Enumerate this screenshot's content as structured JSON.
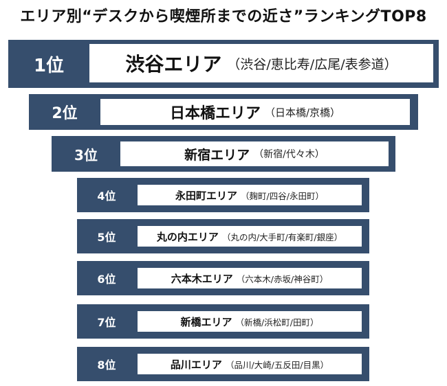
{
  "title": "エリア別“デスクから喫煙所までの近さ”ランキングTOP8",
  "colors": {
    "band": "#364e6d",
    "box": "#ffffff"
  },
  "ranks": [
    {
      "rank": "1位",
      "area": "渋谷エリア",
      "detail": "（渋谷/恵比寿/広尾/表参道）"
    },
    {
      "rank": "2位",
      "area": "日本橋エリア",
      "detail": "（日本橋/京橋）"
    },
    {
      "rank": "3位",
      "area": "新宿エリア",
      "detail": "（新宿/代々木）"
    },
    {
      "rank": "4位",
      "area": "永田町エリア",
      "detail": "（麹町/四谷/永田町）"
    },
    {
      "rank": "5位",
      "area": "丸の内エリア",
      "detail": "（丸の内/大手町/有楽町/銀座）"
    },
    {
      "rank": "6位",
      "area": "六本木エリア",
      "detail": "（六本木/赤坂/神谷町）"
    },
    {
      "rank": "7位",
      "area": "新橋エリア",
      "detail": "（新橋/浜松町/田町）"
    },
    {
      "rank": "8位",
      "area": "品川エリア",
      "detail": "（品川/大崎/五反田/目黒）"
    }
  ]
}
